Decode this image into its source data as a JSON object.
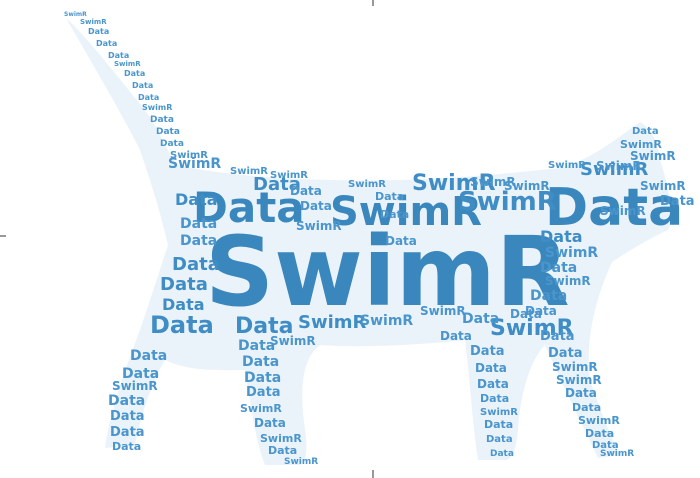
{
  "cloud": {
    "colors": {
      "big": "#3a87bd",
      "medium": "#3f8dc4",
      "small": "#4a95cc",
      "silhouette": "#eaf3fa"
    },
    "words": {
      "main": "SwimR",
      "data": "Data",
      "swimr": "SwimR"
    }
  }
}
